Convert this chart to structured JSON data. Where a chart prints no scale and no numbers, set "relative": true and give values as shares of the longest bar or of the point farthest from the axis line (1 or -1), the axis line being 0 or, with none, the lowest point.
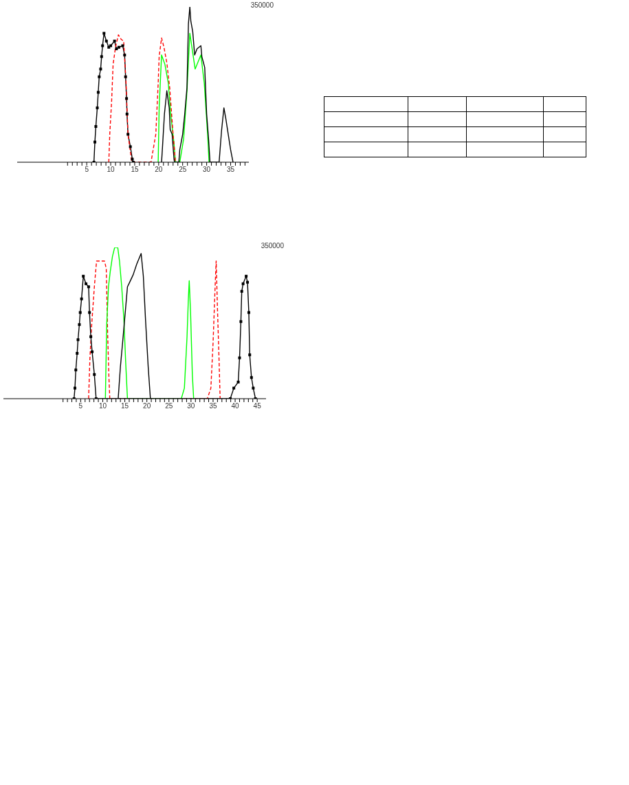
{
  "chart_data": [
    {
      "type": "line",
      "relative": true,
      "annotations": [
        "350000"
      ],
      "xlim": [
        -9.5,
        38.8
      ],
      "xticks": [
        {
          "value": 1,
          "label": null
        },
        {
          "value": 2,
          "label": null
        },
        {
          "value": 3,
          "label": null
        },
        {
          "value": 4,
          "label": null
        },
        5,
        {
          "value": 6,
          "label": null
        },
        {
          "value": 7,
          "label": null
        },
        {
          "value": 8,
          "label": null
        },
        {
          "value": 9,
          "label": null
        },
        10,
        {
          "value": 11,
          "label": null
        },
        {
          "value": 12,
          "label": null
        },
        {
          "value": 13,
          "label": null
        },
        {
          "value": 14,
          "label": null
        },
        15,
        {
          "value": 16,
          "label": null
        },
        {
          "value": 17,
          "label": null
        },
        {
          "value": 18,
          "label": null
        },
        {
          "value": 19,
          "label": null
        },
        20,
        {
          "value": 21,
          "label": null
        },
        {
          "value": 22,
          "label": null
        },
        {
          "value": 23,
          "label": null
        },
        {
          "value": 24,
          "label": null
        },
        25,
        {
          "value": 26,
          "label": null
        },
        {
          "value": 27,
          "label": null
        },
        {
          "value": 28,
          "label": null
        },
        {
          "value": 29,
          "label": null
        },
        30,
        {
          "value": 31,
          "label": null
        },
        {
          "value": 32,
          "label": null
        },
        {
          "value": 33,
          "label": null
        },
        {
          "value": 34,
          "label": null
        },
        35,
        {
          "value": 36,
          "label": null
        },
        {
          "value": 37,
          "label": null
        },
        {
          "value": 38,
          "label": null
        }
      ],
      "tick_labels": "x",
      "marker": "none",
      "line_style": "solid",
      "series": [
        {
          "color": "#00ff00",
          "x": [
            19.9,
            20.1,
            20.6,
            21.3,
            22.0,
            22.5,
            23.2,
            23.5,
            24.4,
            25.2,
            25.9,
            26.5,
            27.6,
            28.8,
            29.5,
            30.2,
            30.5
          ],
          "values": [
            0,
            0.35,
            0.69,
            0.63,
            0.51,
            0.31,
            0.12,
            0,
            0,
            0.15,
            0.46,
            0.83,
            0.6,
            0.69,
            0.51,
            0.18,
            0
          ]
        },
        {
          "color": "#000000",
          "x": [
            20.6,
            20.8,
            21.2,
            21.7,
            22.2,
            22.4,
            22.8,
            23.2,
            23.3,
            24.2,
            24.4,
            25.0,
            25.4,
            25.9,
            26.2,
            26.5,
            26.7,
            27.1,
            27.5,
            28.0,
            28.8,
            29.0,
            29.6,
            30.0,
            30.4,
            30.7,
            32.6,
            33.1,
            33.6,
            34.0,
            34.5,
            35.0,
            35.5
          ],
          "values": [
            0,
            0.1,
            0.31,
            0.46,
            0.35,
            0.21,
            0.18,
            0.02,
            0,
            0,
            0.08,
            0.18,
            0.3,
            0.48,
            0.89,
            1,
            0.91,
            0.84,
            0.69,
            0.73,
            0.75,
            0.68,
            0.61,
            0.31,
            0.15,
            0,
            0,
            0.2,
            0.35,
            0.28,
            0.18,
            0.08,
            0
          ]
        },
        {
          "color": "#000000",
          "marker": "square",
          "x": [
            6.5,
            6.7,
            6.9,
            7.2,
            7.4,
            7.6,
            7.9,
            8.1,
            8.3,
            8.6,
            9.1,
            9.6,
            10.0,
            10.8,
            11.2,
            11.7,
            12.5,
            12.9,
            13.1,
            13.3,
            13.4,
            13.6,
            14.1,
            14.5,
            14.7
          ],
          "values": [
            0,
            0.13,
            0.23,
            0.35,
            0.45,
            0.55,
            0.6,
            0.68,
            0.75,
            0.83,
            0.78,
            0.74,
            0.75,
            0.78,
            0.73,
            0.74,
            0.75,
            0.69,
            0.55,
            0.41,
            0.31,
            0.18,
            0.1,
            0.02,
            0
          ]
        },
        {
          "color": "#ff0000",
          "line_style": "dashed",
          "x": [
            9.6,
            9.8,
            10.2,
            10.5,
            11.0,
            11.6,
            12.2,
            12.7,
            13.2,
            13.6,
            14.4,
            18.4,
            19.4,
            19.9,
            20.1,
            20.6,
            21.1,
            21.7,
            22.3,
            23.0,
            23.5
          ],
          "values": [
            0,
            0.18,
            0.4,
            0.63,
            0.74,
            0.82,
            0.79,
            0.78,
            0.51,
            0.18,
            0,
            0,
            0.18,
            0.51,
            0.68,
            0.8,
            0.74,
            0.64,
            0.48,
            0.18,
            0
          ]
        }
      ]
    },
    {
      "type": "line",
      "relative": true,
      "annotations": [
        "350000"
      ],
      "xlim": [
        -12.5,
        47
      ],
      "xticks": [
        {
          "value": 1,
          "label": null
        },
        {
          "value": 2,
          "label": null
        },
        {
          "value": 3,
          "label": null
        },
        {
          "value": 4,
          "label": null
        },
        5,
        {
          "value": 6,
          "label": null
        },
        {
          "value": 7,
          "label": null
        },
        {
          "value": 8,
          "label": null
        },
        {
          "value": 9,
          "label": null
        },
        10,
        {
          "value": 11,
          "label": null
        },
        {
          "value": 12,
          "label": null
        },
        {
          "value": 13,
          "label": null
        },
        {
          "value": 14,
          "label": null
        },
        15,
        {
          "value": 16,
          "label": null
        },
        {
          "value": 17,
          "label": null
        },
        {
          "value": 18,
          "label": null
        },
        {
          "value": 19,
          "label": null
        },
        20,
        {
          "value": 21,
          "label": null
        },
        {
          "value": 22,
          "label": null
        },
        {
          "value": 23,
          "label": null
        },
        {
          "value": 24,
          "label": null
        },
        25,
        {
          "value": 26,
          "label": null
        },
        {
          "value": 27,
          "label": null
        },
        {
          "value": 28,
          "label": null
        },
        {
          "value": 29,
          "label": null
        },
        30,
        {
          "value": 31,
          "label": null
        },
        {
          "value": 32,
          "label": null
        },
        {
          "value": 33,
          "label": null
        },
        {
          "value": 34,
          "label": null
        },
        35,
        {
          "value": 36,
          "label": null
        },
        {
          "value": 37,
          "label": null
        },
        {
          "value": 38,
          "label": null
        },
        {
          "value": 39,
          "label": null
        },
        40,
        {
          "value": 41,
          "label": null
        },
        {
          "value": 42,
          "label": null
        },
        {
          "value": 43,
          "label": null
        },
        {
          "value": 44,
          "label": null
        },
        45
      ],
      "tick_labels": "x",
      "marker": "none",
      "line_style": "solid",
      "series": [
        {
          "color": "#ff0000",
          "line_style": "dashed",
          "x": [
            6.8,
            7.1,
            7.5,
            8.1,
            8.6,
            9.1,
            10.4,
            10.8,
            11.1,
            11.4,
            11.6,
            33.7,
            34.5,
            35.0,
            35.5,
            35.7,
            36.0,
            36.3,
            36.6
          ],
          "values": [
            0,
            0.27,
            0.49,
            0.74,
            0.91,
            0.91,
            0.91,
            0.86,
            0.44,
            0.14,
            0,
            0,
            0.07,
            0.37,
            0.77,
            0.91,
            0.59,
            0.31,
            0
          ]
        },
        {
          "color": "#00ff00",
          "x": [
            10.6,
            10.9,
            11.3,
            11.7,
            12.2,
            12.7,
            13.4,
            13.8,
            14.3,
            14.8,
            15.2,
            15.6,
            27.8,
            28.5,
            29.1,
            29.4,
            29.6,
            29.9,
            30.3,
            30.6
          ],
          "values": [
            0,
            0.49,
            0.74,
            0.84,
            0.94,
            1,
            1,
            0.91,
            0.74,
            0.52,
            0.24,
            0,
            0,
            0.07,
            0.41,
            0.66,
            0.78,
            0.57,
            0.16,
            0
          ]
        },
        {
          "color": "#000000",
          "x": [
            13.5,
            14.0,
            14.5,
            15.1,
            15.6,
            16.1,
            16.9,
            17.7,
            18.7,
            19.2,
            19.7,
            20.3,
            20.8
          ],
          "values": [
            0,
            0.21,
            0.37,
            0.57,
            0.74,
            0.77,
            0.82,
            0.89,
            0.96,
            0.81,
            0.52,
            0.21,
            0
          ]
        },
        {
          "color": "#000000",
          "marker": "square",
          "x": [
            3.5,
            3.7,
            3.9,
            4.2,
            4.4,
            4.7,
            4.9,
            5.2,
            5.6,
            6.2,
            6.8,
            7.0,
            7.3,
            7.6,
            8.1,
            8.5,
            38.9,
            39.7,
            40.7,
            41.0,
            41.3,
            41.5,
            41.8,
            42.5,
            42.8,
            43.1,
            43.3,
            43.7,
            44.1,
            44.6
          ],
          "values": [
            0,
            0.07,
            0.19,
            0.3,
            0.39,
            0.49,
            0.57,
            0.66,
            0.81,
            0.76,
            0.74,
            0.57,
            0.41,
            0.31,
            0.16,
            0,
            0,
            0.07,
            0.11,
            0.27,
            0.51,
            0.71,
            0.76,
            0.81,
            0.77,
            0.57,
            0.29,
            0.14,
            0.07,
            0
          ]
        }
      ]
    }
  ]
}
